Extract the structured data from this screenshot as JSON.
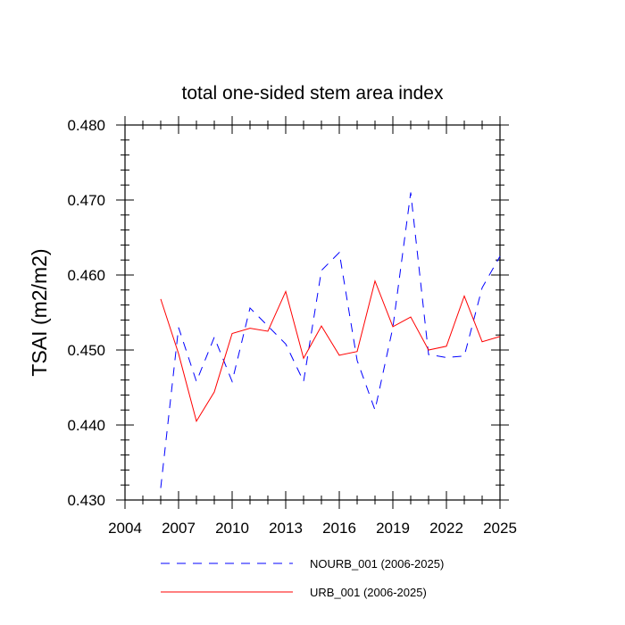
{
  "chart_data": {
    "type": "line",
    "title": "total one-sided stem area index",
    "xlabel": "",
    "ylabel": "TSAI  (m2/m2)",
    "xlim": [
      2004,
      2025
    ],
    "ylim": [
      0.43,
      0.48
    ],
    "xticks": [
      2004,
      2007,
      2010,
      2013,
      2016,
      2019,
      2022,
      2025
    ],
    "yticks": [
      0.43,
      0.44,
      0.45,
      0.46,
      0.47,
      0.48
    ],
    "ytick_labels": [
      "0.430",
      "0.440",
      "0.450",
      "0.460",
      "0.470",
      "0.480"
    ],
    "x": [
      2006,
      2007,
      2008,
      2009,
      2010,
      2011,
      2012,
      2013,
      2014,
      2015,
      2016,
      2017,
      2018,
      2019,
      2020,
      2021,
      2022,
      2023,
      2024,
      2025
    ],
    "series": [
      {
        "name": "NOURB_001 (2006-2025)",
        "color": "#0000ff",
        "dash": "dashed",
        "values": [
          0.4316,
          0.453,
          0.4458,
          0.4517,
          0.4458,
          0.4556,
          0.4532,
          0.4508,
          0.4458,
          0.4606,
          0.463,
          0.4486,
          0.442,
          0.453,
          0.471,
          0.4494,
          0.449,
          0.4492,
          0.4583,
          0.4625
        ]
      },
      {
        "name": "URB_001 (2006-2025)",
        "color": "#ff0000",
        "dash": "solid",
        "values": [
          0.4568,
          0.4495,
          0.4405,
          0.4444,
          0.4522,
          0.4529,
          0.4525,
          0.4578,
          0.4489,
          0.4532,
          0.4493,
          0.4498,
          0.4592,
          0.4531,
          0.4544,
          0.45,
          0.4505,
          0.4572,
          0.4511,
          0.4518
        ]
      }
    ],
    "legend_position": "bottom"
  }
}
